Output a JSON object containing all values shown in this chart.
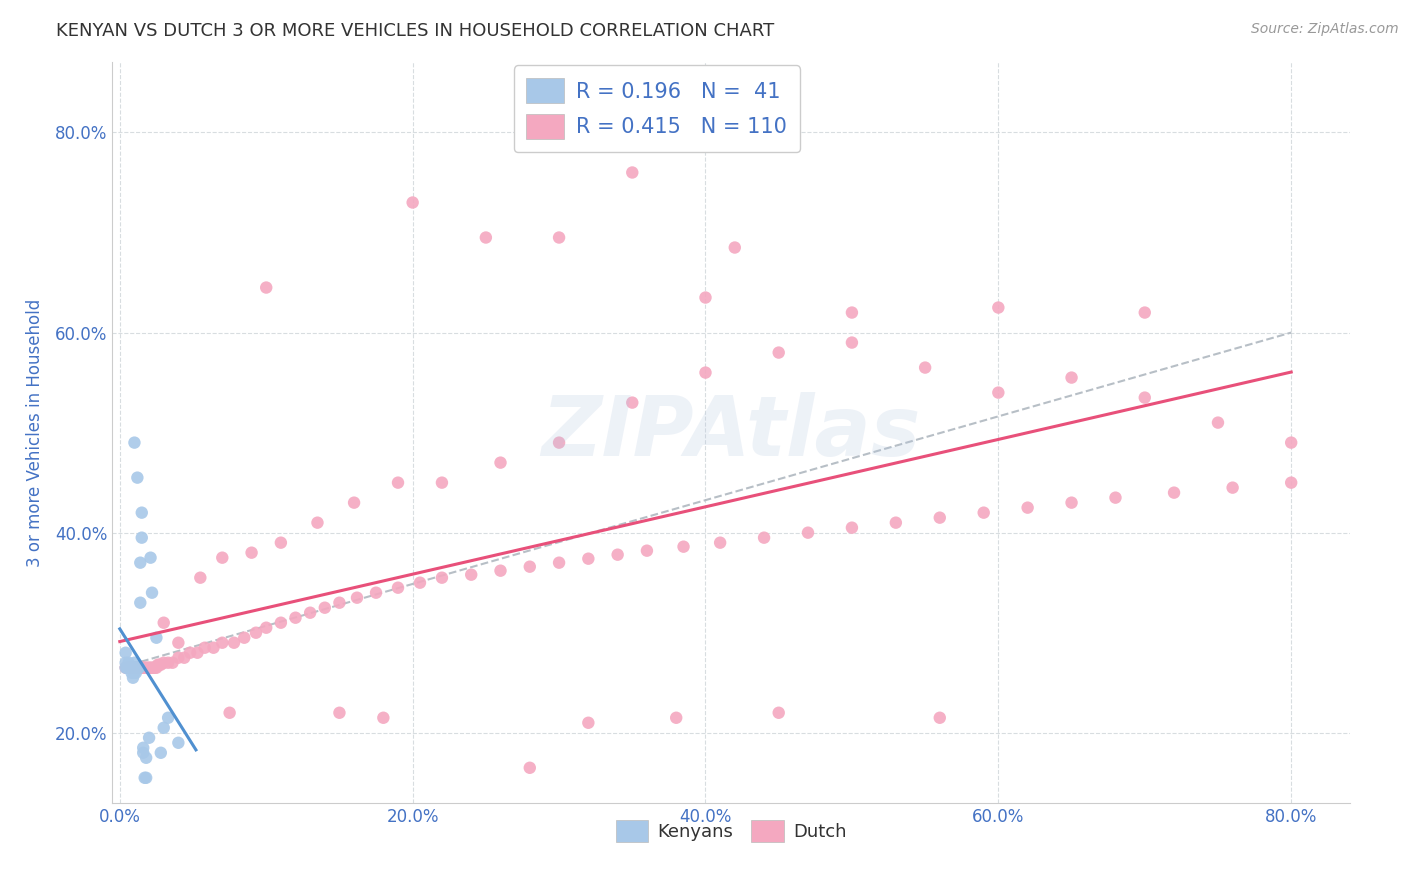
{
  "title": "KENYAN VS DUTCH 3 OR MORE VEHICLES IN HOUSEHOLD CORRELATION CHART",
  "source": "Source: ZipAtlas.com",
  "ylabel": "3 or more Vehicles in Household",
  "xlim": [
    -0.005,
    0.84
  ],
  "ylim": [
    0.13,
    0.87
  ],
  "xtick_vals": [
    0.0,
    0.2,
    0.4,
    0.6,
    0.8
  ],
  "ytick_vals": [
    0.2,
    0.4,
    0.6,
    0.8
  ],
  "kenyan_R": 0.196,
  "kenyan_N": 41,
  "dutch_R": 0.415,
  "dutch_N": 110,
  "kenyan_color": "#a8c8e8",
  "dutch_color": "#f4a8c0",
  "kenyan_line_color": "#5090d0",
  "dutch_line_color": "#e8507a",
  "dash_line_color": "#b0b8c0",
  "background_color": "#ffffff",
  "grid_color": "#d8dde0",
  "title_color": "#333333",
  "source_color": "#999999",
  "legend_text_color": "#4472c4",
  "axis_label_color": "#4472c4",
  "kenyan_scatter_x": [
    0.004,
    0.004,
    0.004,
    0.005,
    0.005,
    0.006,
    0.006,
    0.007,
    0.007,
    0.008,
    0.008,
    0.009,
    0.009,
    0.01,
    0.01,
    0.01,
    0.011,
    0.011,
    0.012,
    0.012,
    0.013,
    0.013,
    0.014,
    0.014,
    0.015,
    0.015,
    0.016,
    0.016,
    0.017,
    0.018,
    0.018,
    0.02,
    0.021,
    0.022,
    0.025,
    0.028,
    0.03,
    0.033,
    0.04,
    0.01,
    0.012
  ],
  "kenyan_scatter_y": [
    0.27,
    0.28,
    0.265,
    0.265,
    0.265,
    0.265,
    0.27,
    0.265,
    0.265,
    0.265,
    0.26,
    0.255,
    0.262,
    0.265,
    0.26,
    0.27,
    0.265,
    0.26,
    0.265,
    0.265,
    0.265,
    0.265,
    0.33,
    0.37,
    0.395,
    0.42,
    0.18,
    0.185,
    0.155,
    0.155,
    0.175,
    0.195,
    0.375,
    0.34,
    0.295,
    0.18,
    0.205,
    0.215,
    0.19,
    0.49,
    0.455
  ],
  "dutch_scatter_x": [
    0.004,
    0.005,
    0.006,
    0.007,
    0.008,
    0.009,
    0.01,
    0.011,
    0.012,
    0.013,
    0.014,
    0.015,
    0.016,
    0.017,
    0.018,
    0.019,
    0.02,
    0.021,
    0.022,
    0.023,
    0.024,
    0.025,
    0.026,
    0.027,
    0.028,
    0.03,
    0.033,
    0.036,
    0.04,
    0.044,
    0.048,
    0.053,
    0.058,
    0.064,
    0.07,
    0.078,
    0.085,
    0.093,
    0.1,
    0.11,
    0.12,
    0.13,
    0.14,
    0.15,
    0.162,
    0.175,
    0.19,
    0.205,
    0.22,
    0.24,
    0.26,
    0.28,
    0.3,
    0.32,
    0.34,
    0.36,
    0.385,
    0.41,
    0.44,
    0.47,
    0.5,
    0.53,
    0.56,
    0.59,
    0.62,
    0.65,
    0.68,
    0.72,
    0.76,
    0.8,
    0.03,
    0.04,
    0.055,
    0.07,
    0.09,
    0.11,
    0.135,
    0.16,
    0.19,
    0.22,
    0.26,
    0.3,
    0.35,
    0.4,
    0.45,
    0.5,
    0.55,
    0.6,
    0.65,
    0.7,
    0.75,
    0.8,
    0.1,
    0.2,
    0.3,
    0.4,
    0.5,
    0.6,
    0.7,
    0.35,
    0.25,
    0.42,
    0.15,
    0.45,
    0.32,
    0.56,
    0.28,
    0.075,
    0.18,
    0.38
  ],
  "dutch_scatter_y": [
    0.265,
    0.265,
    0.265,
    0.265,
    0.265,
    0.265,
    0.265,
    0.265,
    0.265,
    0.265,
    0.265,
    0.265,
    0.265,
    0.265,
    0.265,
    0.265,
    0.265,
    0.265,
    0.265,
    0.265,
    0.265,
    0.265,
    0.268,
    0.268,
    0.268,
    0.27,
    0.27,
    0.27,
    0.275,
    0.275,
    0.28,
    0.28,
    0.285,
    0.285,
    0.29,
    0.29,
    0.295,
    0.3,
    0.305,
    0.31,
    0.315,
    0.32,
    0.325,
    0.33,
    0.335,
    0.34,
    0.345,
    0.35,
    0.355,
    0.358,
    0.362,
    0.366,
    0.37,
    0.374,
    0.378,
    0.382,
    0.386,
    0.39,
    0.395,
    0.4,
    0.405,
    0.41,
    0.415,
    0.42,
    0.425,
    0.43,
    0.435,
    0.44,
    0.445,
    0.45,
    0.31,
    0.29,
    0.355,
    0.375,
    0.38,
    0.39,
    0.41,
    0.43,
    0.45,
    0.45,
    0.47,
    0.49,
    0.53,
    0.56,
    0.58,
    0.59,
    0.565,
    0.54,
    0.555,
    0.535,
    0.51,
    0.49,
    0.645,
    0.73,
    0.695,
    0.635,
    0.62,
    0.625,
    0.62,
    0.76,
    0.695,
    0.685,
    0.22,
    0.22,
    0.21,
    0.215,
    0.165,
    0.22,
    0.215,
    0.215
  ]
}
